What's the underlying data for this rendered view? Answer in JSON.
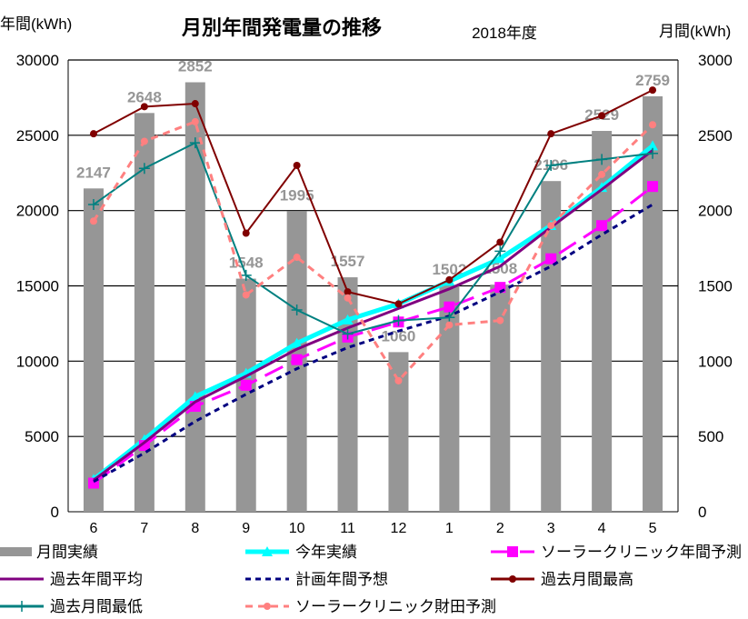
{
  "chart_data": {
    "type": "bar+line",
    "title": "月別年間発電量の推移",
    "subtitle": "2018年度",
    "ylabel_left": "年間(kWh)",
    "ylabel_right": "月間(kWh)",
    "ylim_left": [
      0,
      30000
    ],
    "ylim_right": [
      0,
      3000
    ],
    "yticks_left": [
      0,
      5000,
      10000,
      15000,
      20000,
      25000,
      30000
    ],
    "yticks_right": [
      0,
      500,
      1000,
      1500,
      2000,
      2500,
      3000
    ],
    "categories": [
      "6",
      "7",
      "8",
      "9",
      "10",
      "11",
      "12",
      "1",
      "2",
      "3",
      "4",
      "5"
    ],
    "grid": true,
    "legend": "bottom",
    "series": [
      {
        "name": "月間実績",
        "type": "bar",
        "axis": "right",
        "color": "#969696",
        "values": [
          2147,
          2648,
          2852,
          1548,
          1995,
          1557,
          1060,
          1502,
          1508,
          2196,
          2529,
          2759
        ]
      },
      {
        "name": "今年実績",
        "type": "line",
        "axis": "left",
        "color": "#00ffff",
        "marker": "triangle",
        "values": [
          2147,
          4795,
          7647,
          9195,
          11190,
          12747,
          13807,
          15309,
          16817,
          19013,
          21542,
          24301
        ]
      },
      {
        "name": "ソーラークリニック年間予測",
        "type": "line",
        "axis": "left",
        "color": "#ff00ff",
        "marker": "square",
        "dash": "long",
        "values": [
          1900,
          4400,
          7000,
          8400,
          10100,
          11600,
          12600,
          13600,
          14900,
          16800,
          19000,
          21600
        ]
      },
      {
        "name": "過去年間平均",
        "type": "line",
        "axis": "left",
        "color": "#800080",
        "marker": "none",
        "values": [
          2100,
          4600,
          7300,
          9000,
          10800,
          12200,
          13500,
          14800,
          16300,
          18900,
          21400,
          24000
        ]
      },
      {
        "name": "計画年間予想",
        "type": "line",
        "axis": "left",
        "color": "#000080",
        "marker": "none",
        "dash": "short",
        "values": [
          2000,
          3900,
          6000,
          7800,
          9500,
          10900,
          12000,
          13000,
          14600,
          16300,
          18400,
          20400
        ]
      },
      {
        "name": "過去月間最高",
        "type": "line",
        "axis": "right",
        "color": "#800000",
        "marker": "circle",
        "values": [
          2510,
          2690,
          2710,
          1850,
          2300,
          1460,
          1380,
          1540,
          1790,
          2510,
          2630,
          2800
        ]
      },
      {
        "name": "過去月間最低",
        "type": "line",
        "axis": "right",
        "color": "#008080",
        "marker": "plus",
        "values": [
          2040,
          2280,
          2450,
          1570,
          1340,
          1180,
          1270,
          1290,
          1730,
          2300,
          2340,
          2380
        ]
      },
      {
        "name": "ソーラークリニック財田予測",
        "type": "line",
        "axis": "right",
        "color": "#ff8080",
        "marker": "circle",
        "dash": "medium",
        "values": [
          1930,
          2460,
          2590,
          1440,
          1690,
          1420,
          870,
          1240,
          1270,
          1900,
          2240,
          2570
        ]
      }
    ]
  }
}
